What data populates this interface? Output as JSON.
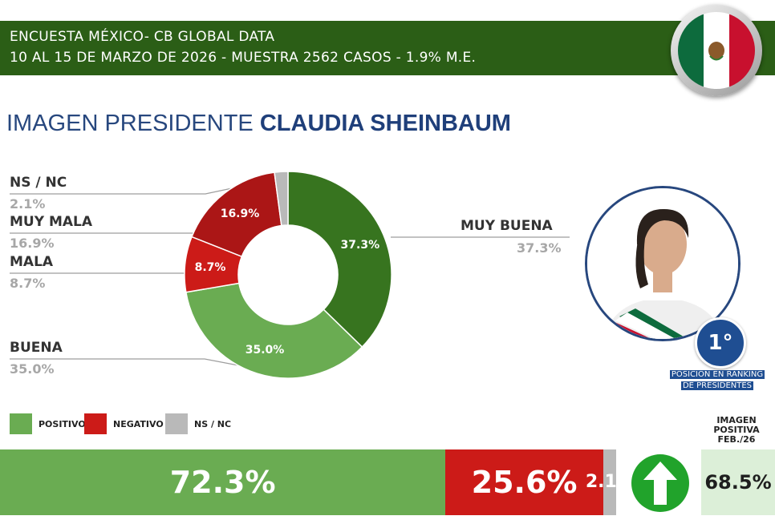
{
  "header": {
    "line1": "ENCUESTA MÉXICO- CB GLOBAL DATA",
    "line2": "10 AL 15 DE MARZO DE 2026 - MUESTRA 2562 CASOS - 1.9% M.E."
  },
  "title": {
    "prefix": "IMAGEN PRESIDENTE",
    "name": "CLAUDIA SHEINBAUM"
  },
  "colors": {
    "header_bg": "#2b5e16",
    "dark_green": "#37741f",
    "light_green": "#6aac52",
    "dark_red": "#ab1616",
    "red": "#cc1b18",
    "gray": "#b9b9b9",
    "title_blue": "#27477e"
  },
  "chart_data": [
    {
      "type": "pie",
      "subtype": "donut",
      "categories": [
        "MUY BUENA",
        "BUENA",
        "MALA",
        "MUY MALA",
        "NS / NC"
      ],
      "values": [
        37.3,
        35.0,
        8.7,
        16.9,
        2.1
      ],
      "labels": [
        "37.3%",
        "35.0%",
        "8.7%",
        "16.9%",
        "2.1%"
      ],
      "colors": [
        "#37741f",
        "#6aac52",
        "#cc1b18",
        "#ab1616",
        "#b9b9b9"
      ]
    },
    {
      "type": "bar",
      "subtype": "stacked-horizontal",
      "categories": [
        "POSITIVO",
        "NEGATIVO",
        "NS / NC"
      ],
      "values": [
        72.3,
        25.6,
        2.1
      ],
      "labels": [
        "72.3%",
        "25.6%",
        "2.1%"
      ],
      "colors": [
        "#6aac52",
        "#cc1b18",
        "#b9b9b9"
      ]
    }
  ],
  "ranking": {
    "badge": "1°",
    "caption_l1": "POSICIÓN EN RANKING",
    "caption_l2": "DE PRESIDENTES"
  },
  "legend": [
    "POSITIVO",
    "NEGATIVO",
    "NS / NC"
  ],
  "comparison": {
    "label_l1": "IMAGEN",
    "label_l2": "POSITIVA",
    "label_l3": "FEB./26",
    "value": "68.5%",
    "trend_icon": "up-arrow-icon"
  }
}
